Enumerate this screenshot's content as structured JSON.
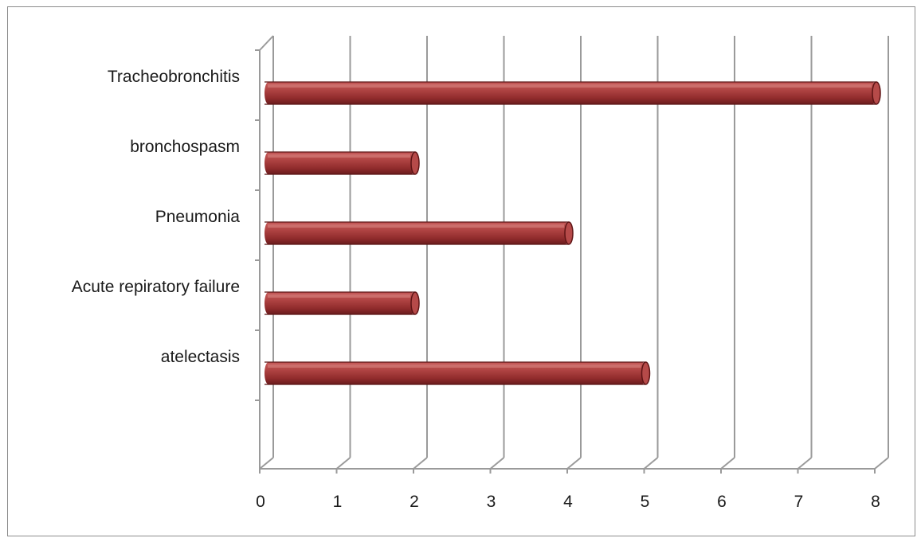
{
  "chart_data": {
    "type": "bar",
    "orientation": "horizontal",
    "style": "3d-cylinder",
    "categories": [
      "atelectasis",
      "Acute repiratory failure",
      "Pneumonia",
      "bronchospasm",
      "Tracheobronchitis"
    ],
    "values": [
      5,
      2,
      4,
      2,
      8
    ],
    "xlim": [
      0,
      8
    ],
    "x_ticks": [
      "0",
      "1",
      "2",
      "3",
      "4",
      "5",
      "6",
      "7",
      "8"
    ],
    "grid": true,
    "legend": "none",
    "colors": {
      "bar": "#a8393a",
      "bar_light": "#d77a78",
      "bar_dark": "#6e1d1e",
      "grid": "#9a9a9a"
    }
  }
}
